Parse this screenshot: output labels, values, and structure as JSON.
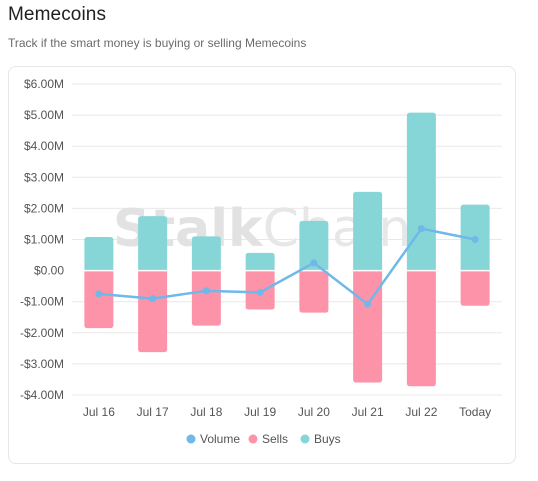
{
  "header": {
    "title": "Memecoins",
    "subtitle": "Track if the smart money is buying or selling Memecoins"
  },
  "watermark": {
    "bold_part": "Stalk",
    "light_part": "Chain"
  },
  "colors": {
    "volume": "#6fb8ea",
    "sells": "#fd93a9",
    "buys": "#86d6d8",
    "grid": "#e8e8e8"
  },
  "chart_data": {
    "type": "bar",
    "categories": [
      "Jul 16",
      "Jul 17",
      "Jul 18",
      "Jul 19",
      "Jul 20",
      "Jul 21",
      "Jul 22",
      "Today"
    ],
    "ylim": [
      -4,
      6
    ],
    "yticks": [
      6,
      5,
      4,
      3,
      2,
      1,
      0,
      -1,
      -2,
      -3,
      -4
    ],
    "ytick_labels": [
      "$6.00M",
      "$5.00M",
      "$4.00M",
      "$3.00M",
      "$2.00M",
      "$1.00M",
      "$0.00",
      "-$1.00M",
      "-$2.00M",
      "-$3.00M",
      "-$4.00M"
    ],
    "grid": true,
    "legend_position": "bottom",
    "series": [
      {
        "name": "Volume",
        "type": "line",
        "values": [
          -0.75,
          -0.9,
          -0.65,
          -0.7,
          0.25,
          -1.08,
          1.35,
          1.0
        ]
      },
      {
        "name": "Sells",
        "type": "bar",
        "values": [
          -1.85,
          -2.62,
          -1.77,
          -1.25,
          -1.35,
          -3.6,
          -3.72,
          -1.13
        ]
      },
      {
        "name": "Buys",
        "type": "bar",
        "values": [
          1.08,
          1.75,
          1.1,
          0.57,
          1.6,
          2.53,
          5.08,
          2.12
        ]
      }
    ]
  }
}
